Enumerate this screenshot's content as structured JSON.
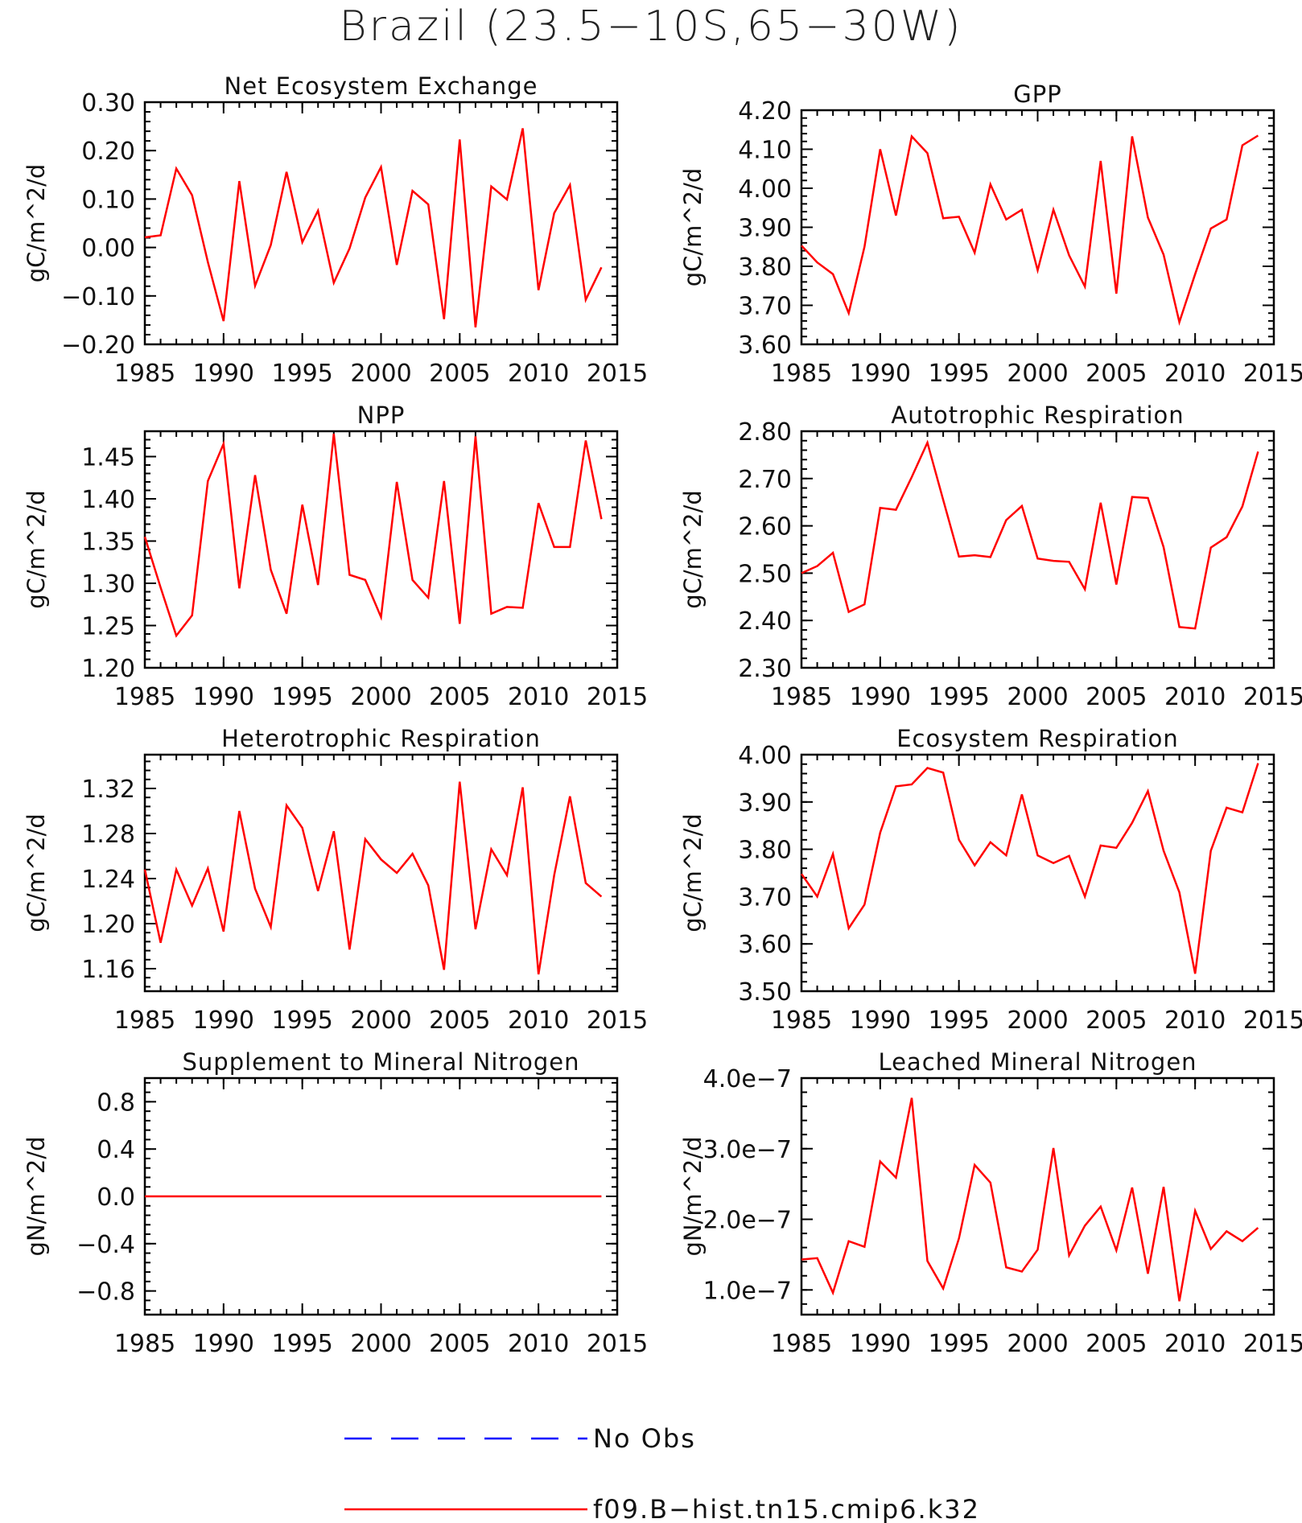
{
  "title": "Brazil (23.5−10S,65−30W)",
  "colors": {
    "model": "#ff0000",
    "obs": "#0000ff",
    "axis": "#000000"
  },
  "legend": {
    "obs_label": "No Obs",
    "model_label": "f09.B−hist.tn15.cmip6.k32"
  },
  "chart_data": [
    {
      "type": "line",
      "title": "Net Ecosystem Exchange",
      "ylabel": "gC/m^2/d",
      "xlim": [
        1985,
        2015
      ],
      "xticks": [
        1985,
        1990,
        1995,
        2000,
        2005,
        2010,
        2015
      ],
      "xtick_labels": [
        "1985",
        "1990",
        "1995",
        "2000",
        "2005",
        "2010",
        "2015"
      ],
      "ylim": [
        -0.2,
        0.3
      ],
      "yticks": [
        -0.2,
        -0.1,
        0.0,
        0.1,
        0.2,
        0.3
      ],
      "ytick_labels": [
        "−0.20",
        "−0.10",
        "0.00",
        "0.10",
        "0.20",
        "0.30"
      ],
      "series": [
        {
          "name": "f09.B−hist.tn15.cmip6.k32",
          "x": [
            1985,
            1986,
            1987,
            1988,
            1989,
            1990,
            1991,
            1992,
            1993,
            1994,
            1995,
            1996,
            1997,
            1998,
            1999,
            2000,
            2001,
            2002,
            2003,
            2004,
            2005,
            2006,
            2007,
            2008,
            2009,
            2010,
            2011,
            2012,
            2013,
            2014
          ],
          "y": [
            0.021,
            0.025,
            0.163,
            0.108,
            -0.03,
            -0.152,
            0.137,
            -0.079,
            0.005,
            0.156,
            0.011,
            0.076,
            -0.073,
            -0.002,
            0.103,
            0.166,
            -0.036,
            0.117,
            0.089,
            -0.148,
            0.223,
            -0.165,
            0.126,
            0.099,
            0.246,
            -0.088,
            0.071,
            0.129,
            -0.108,
            -0.041
          ]
        }
      ]
    },
    {
      "type": "line",
      "title": "GPP",
      "ylabel": "gC/m^2/d",
      "xlim": [
        1985,
        2015
      ],
      "xticks": [
        1985,
        1990,
        1995,
        2000,
        2005,
        2010,
        2015
      ],
      "xtick_labels": [
        "1985",
        "1990",
        "1995",
        "2000",
        "2005",
        "2010",
        "2015"
      ],
      "ylim": [
        3.6,
        4.2
      ],
      "yticks": [
        3.6,
        3.7,
        3.8,
        3.9,
        4.0,
        4.1,
        4.2
      ],
      "ytick_labels": [
        "3.60",
        "3.70",
        "3.80",
        "3.90",
        "4.00",
        "4.10",
        "4.20"
      ],
      "series": [
        {
          "name": "f09.B−hist.tn15.cmip6.k32",
          "x": [
            1985,
            1986,
            1987,
            1988,
            1989,
            1990,
            1991,
            1992,
            1993,
            1994,
            1995,
            1996,
            1997,
            1998,
            1999,
            2000,
            2001,
            2002,
            2003,
            2004,
            2005,
            2006,
            2007,
            2008,
            2009,
            2010,
            2011,
            2012,
            2013,
            2014
          ],
          "y": [
            3.853,
            3.81,
            3.78,
            3.68,
            3.85,
            4.1,
            3.93,
            4.133,
            4.09,
            3.923,
            3.927,
            3.835,
            4.01,
            3.92,
            3.945,
            3.79,
            3.945,
            3.828,
            3.748,
            4.07,
            3.73,
            4.133,
            3.925,
            3.83,
            3.657,
            3.78,
            3.897,
            3.92,
            4.11,
            4.135
          ]
        }
      ]
    },
    {
      "type": "line",
      "title": "NPP",
      "ylabel": "gC/m^2/d",
      "xlim": [
        1985,
        2015
      ],
      "xticks": [
        1985,
        1990,
        1995,
        2000,
        2005,
        2010,
        2015
      ],
      "xtick_labels": [
        "1985",
        "1990",
        "1995",
        "2000",
        "2005",
        "2010",
        "2015"
      ],
      "ylim": [
        1.2,
        1.48
      ],
      "yticks": [
        1.2,
        1.25,
        1.3,
        1.35,
        1.4,
        1.45
      ],
      "ytick_labels": [
        "1.20",
        "1.25",
        "1.30",
        "1.35",
        "1.40",
        "1.45"
      ],
      "series": [
        {
          "name": "f09.B−hist.tn15.cmip6.k32",
          "x": [
            1985,
            1986,
            1987,
            1988,
            1989,
            1990,
            1991,
            1992,
            1993,
            1994,
            1995,
            1996,
            1997,
            1998,
            1999,
            2000,
            2001,
            2002,
            2003,
            2004,
            2005,
            2006,
            2007,
            2008,
            2009,
            2010,
            2011,
            2012,
            2013,
            2014
          ],
          "y": [
            1.355,
            1.295,
            1.238,
            1.262,
            1.421,
            1.465,
            1.294,
            1.428,
            1.316,
            1.264,
            1.393,
            1.298,
            1.477,
            1.31,
            1.304,
            1.26,
            1.42,
            1.304,
            1.283,
            1.421,
            1.252,
            1.474,
            1.264,
            1.272,
            1.271,
            1.395,
            1.343,
            1.343,
            1.469,
            1.376
          ]
        }
      ]
    },
    {
      "type": "line",
      "title": "Autotrophic Respiration",
      "ylabel": "gC/m^2/d",
      "xlim": [
        1985,
        2015
      ],
      "xticks": [
        1985,
        1990,
        1995,
        2000,
        2005,
        2010,
        2015
      ],
      "xtick_labels": [
        "1985",
        "1990",
        "1995",
        "2000",
        "2005",
        "2010",
        "2015"
      ],
      "ylim": [
        2.3,
        2.8
      ],
      "yticks": [
        2.3,
        2.4,
        2.5,
        2.6,
        2.7,
        2.8
      ],
      "ytick_labels": [
        "2.30",
        "2.40",
        "2.50",
        "2.60",
        "2.70",
        "2.80"
      ],
      "series": [
        {
          "name": "f09.B−hist.tn15.cmip6.k32",
          "x": [
            1985,
            1986,
            1987,
            1988,
            1989,
            1990,
            1991,
            1992,
            1993,
            1994,
            1995,
            1996,
            1997,
            1998,
            1999,
            2000,
            2001,
            2002,
            2003,
            2004,
            2005,
            2006,
            2007,
            2008,
            2009,
            2010,
            2011,
            2012,
            2013,
            2014
          ],
          "y": [
            2.5,
            2.515,
            2.543,
            2.418,
            2.434,
            2.638,
            2.634,
            2.703,
            2.776,
            2.655,
            2.535,
            2.538,
            2.534,
            2.612,
            2.642,
            2.531,
            2.526,
            2.524,
            2.466,
            2.649,
            2.476,
            2.661,
            2.659,
            2.555,
            2.386,
            2.383,
            2.554,
            2.576,
            2.641,
            2.757
          ]
        }
      ]
    },
    {
      "type": "line",
      "title": "Heterotrophic Respiration",
      "ylabel": "gC/m^2/d",
      "xlim": [
        1985,
        2015
      ],
      "xticks": [
        1985,
        1990,
        1995,
        2000,
        2005,
        2010,
        2015
      ],
      "xtick_labels": [
        "1985",
        "1990",
        "1995",
        "2000",
        "2005",
        "2010",
        "2015"
      ],
      "ylim": [
        1.14,
        1.35
      ],
      "yticks": [
        1.16,
        1.2,
        1.24,
        1.28,
        1.32
      ],
      "ytick_labels": [
        "1.16",
        "1.20",
        "1.24",
        "1.28",
        "1.32"
      ],
      "series": [
        {
          "name": "f09.B−hist.tn15.cmip6.k32",
          "x": [
            1985,
            1986,
            1987,
            1988,
            1989,
            1990,
            1991,
            1992,
            1993,
            1994,
            1995,
            1996,
            1997,
            1998,
            1999,
            2000,
            2001,
            2002,
            2003,
            2004,
            2005,
            2006,
            2007,
            2008,
            2009,
            2010,
            2011,
            2012,
            2013,
            2014
          ],
          "y": [
            1.248,
            1.183,
            1.248,
            1.216,
            1.249,
            1.193,
            1.3,
            1.231,
            1.197,
            1.305,
            1.285,
            1.229,
            1.282,
            1.177,
            1.275,
            1.257,
            1.245,
            1.262,
            1.234,
            1.159,
            1.326,
            1.195,
            1.266,
            1.243,
            1.321,
            1.155,
            1.243,
            1.313,
            1.236,
            1.224
          ]
        }
      ]
    },
    {
      "type": "line",
      "title": "Ecosystem Respiration",
      "ylabel": "gC/m^2/d",
      "xlim": [
        1985,
        2015
      ],
      "xticks": [
        1985,
        1990,
        1995,
        2000,
        2005,
        2010,
        2015
      ],
      "xtick_labels": [
        "1985",
        "1990",
        "1995",
        "2000",
        "2005",
        "2010",
        "2015"
      ],
      "ylim": [
        3.5,
        4.0
      ],
      "yticks": [
        3.5,
        3.6,
        3.7,
        3.8,
        3.9,
        4.0
      ],
      "ytick_labels": [
        "3.50",
        "3.60",
        "3.70",
        "3.80",
        "3.90",
        "4.00"
      ],
      "series": [
        {
          "name": "f09.B−hist.tn15.cmip6.k32",
          "x": [
            1985,
            1986,
            1987,
            1988,
            1989,
            1990,
            1991,
            1992,
            1993,
            1994,
            1995,
            1996,
            1997,
            1998,
            1999,
            2000,
            2001,
            2002,
            2003,
            2004,
            2005,
            2006,
            2007,
            2008,
            2009,
            2010,
            2011,
            2012,
            2013,
            2014
          ],
          "y": [
            3.748,
            3.7,
            3.79,
            3.633,
            3.683,
            3.835,
            3.933,
            3.937,
            3.972,
            3.962,
            3.82,
            3.766,
            3.815,
            3.787,
            3.916,
            3.787,
            3.771,
            3.786,
            3.7,
            3.808,
            3.803,
            3.856,
            3.923,
            3.797,
            3.709,
            3.537,
            3.797,
            3.888,
            3.878,
            3.982
          ]
        }
      ]
    },
    {
      "type": "line",
      "title": "Supplement to Mineral Nitrogen",
      "ylabel": "gN/m^2/d",
      "xlim": [
        1985,
        2015
      ],
      "xticks": [
        1985,
        1990,
        1995,
        2000,
        2005,
        2010,
        2015
      ],
      "xtick_labels": [
        "1985",
        "1990",
        "1995",
        "2000",
        "2005",
        "2010",
        "2015"
      ],
      "ylim": [
        -1.0,
        1.0
      ],
      "yticks": [
        -0.8,
        -0.4,
        0.0,
        0.4,
        0.8
      ],
      "ytick_labels": [
        "−0.8",
        "−0.4",
        "0.0",
        "0.4",
        "0.8"
      ],
      "series": [
        {
          "name": "f09.B−hist.tn15.cmip6.k32",
          "x": [
            1985,
            2014
          ],
          "y": [
            0.0,
            0.0
          ]
        }
      ]
    },
    {
      "type": "line",
      "title": "Leached Mineral Nitrogen",
      "ylabel": "gN/m^2/d",
      "xlim": [
        1985,
        2015
      ],
      "xticks": [
        1985,
        1990,
        1995,
        2000,
        2005,
        2010,
        2015
      ],
      "xtick_labels": [
        "1985",
        "1990",
        "1995",
        "2000",
        "2005",
        "2010",
        "2015"
      ],
      "ylim": [
        6.5e-08,
        4e-07
      ],
      "yticks": [
        1e-07,
        2e-07,
        3e-07,
        4e-07
      ],
      "ytick_labels": [
        "1.0e−7",
        "2.0e−7",
        "3.0e−7",
        "4.0e−7"
      ],
      "series": [
        {
          "name": "f09.B−hist.tn15.cmip6.k32",
          "x": [
            1985,
            1986,
            1987,
            1988,
            1989,
            1990,
            1991,
            1992,
            1993,
            1994,
            1995,
            1996,
            1997,
            1998,
            1999,
            2000,
            2001,
            2002,
            2003,
            2004,
            2005,
            2006,
            2007,
            2008,
            2009,
            2010,
            2011,
            2012,
            2013,
            2014
          ],
          "y": [
            1.43e-07,
            1.45e-07,
            9.6e-08,
            1.69e-07,
            1.61e-07,
            2.82e-07,
            2.59e-07,
            3.72e-07,
            1.41e-07,
            1.02e-07,
            1.73e-07,
            2.77e-07,
            2.52e-07,
            1.32e-07,
            1.26e-07,
            1.57e-07,
            3.01e-07,
            1.49e-07,
            1.91e-07,
            2.18e-07,
            1.56e-07,
            2.45e-07,
            1.23e-07,
            2.46e-07,
            8.4e-08,
            2.12e-07,
            1.58e-07,
            1.83e-07,
            1.69e-07,
            1.88e-07
          ]
        }
      ]
    }
  ]
}
